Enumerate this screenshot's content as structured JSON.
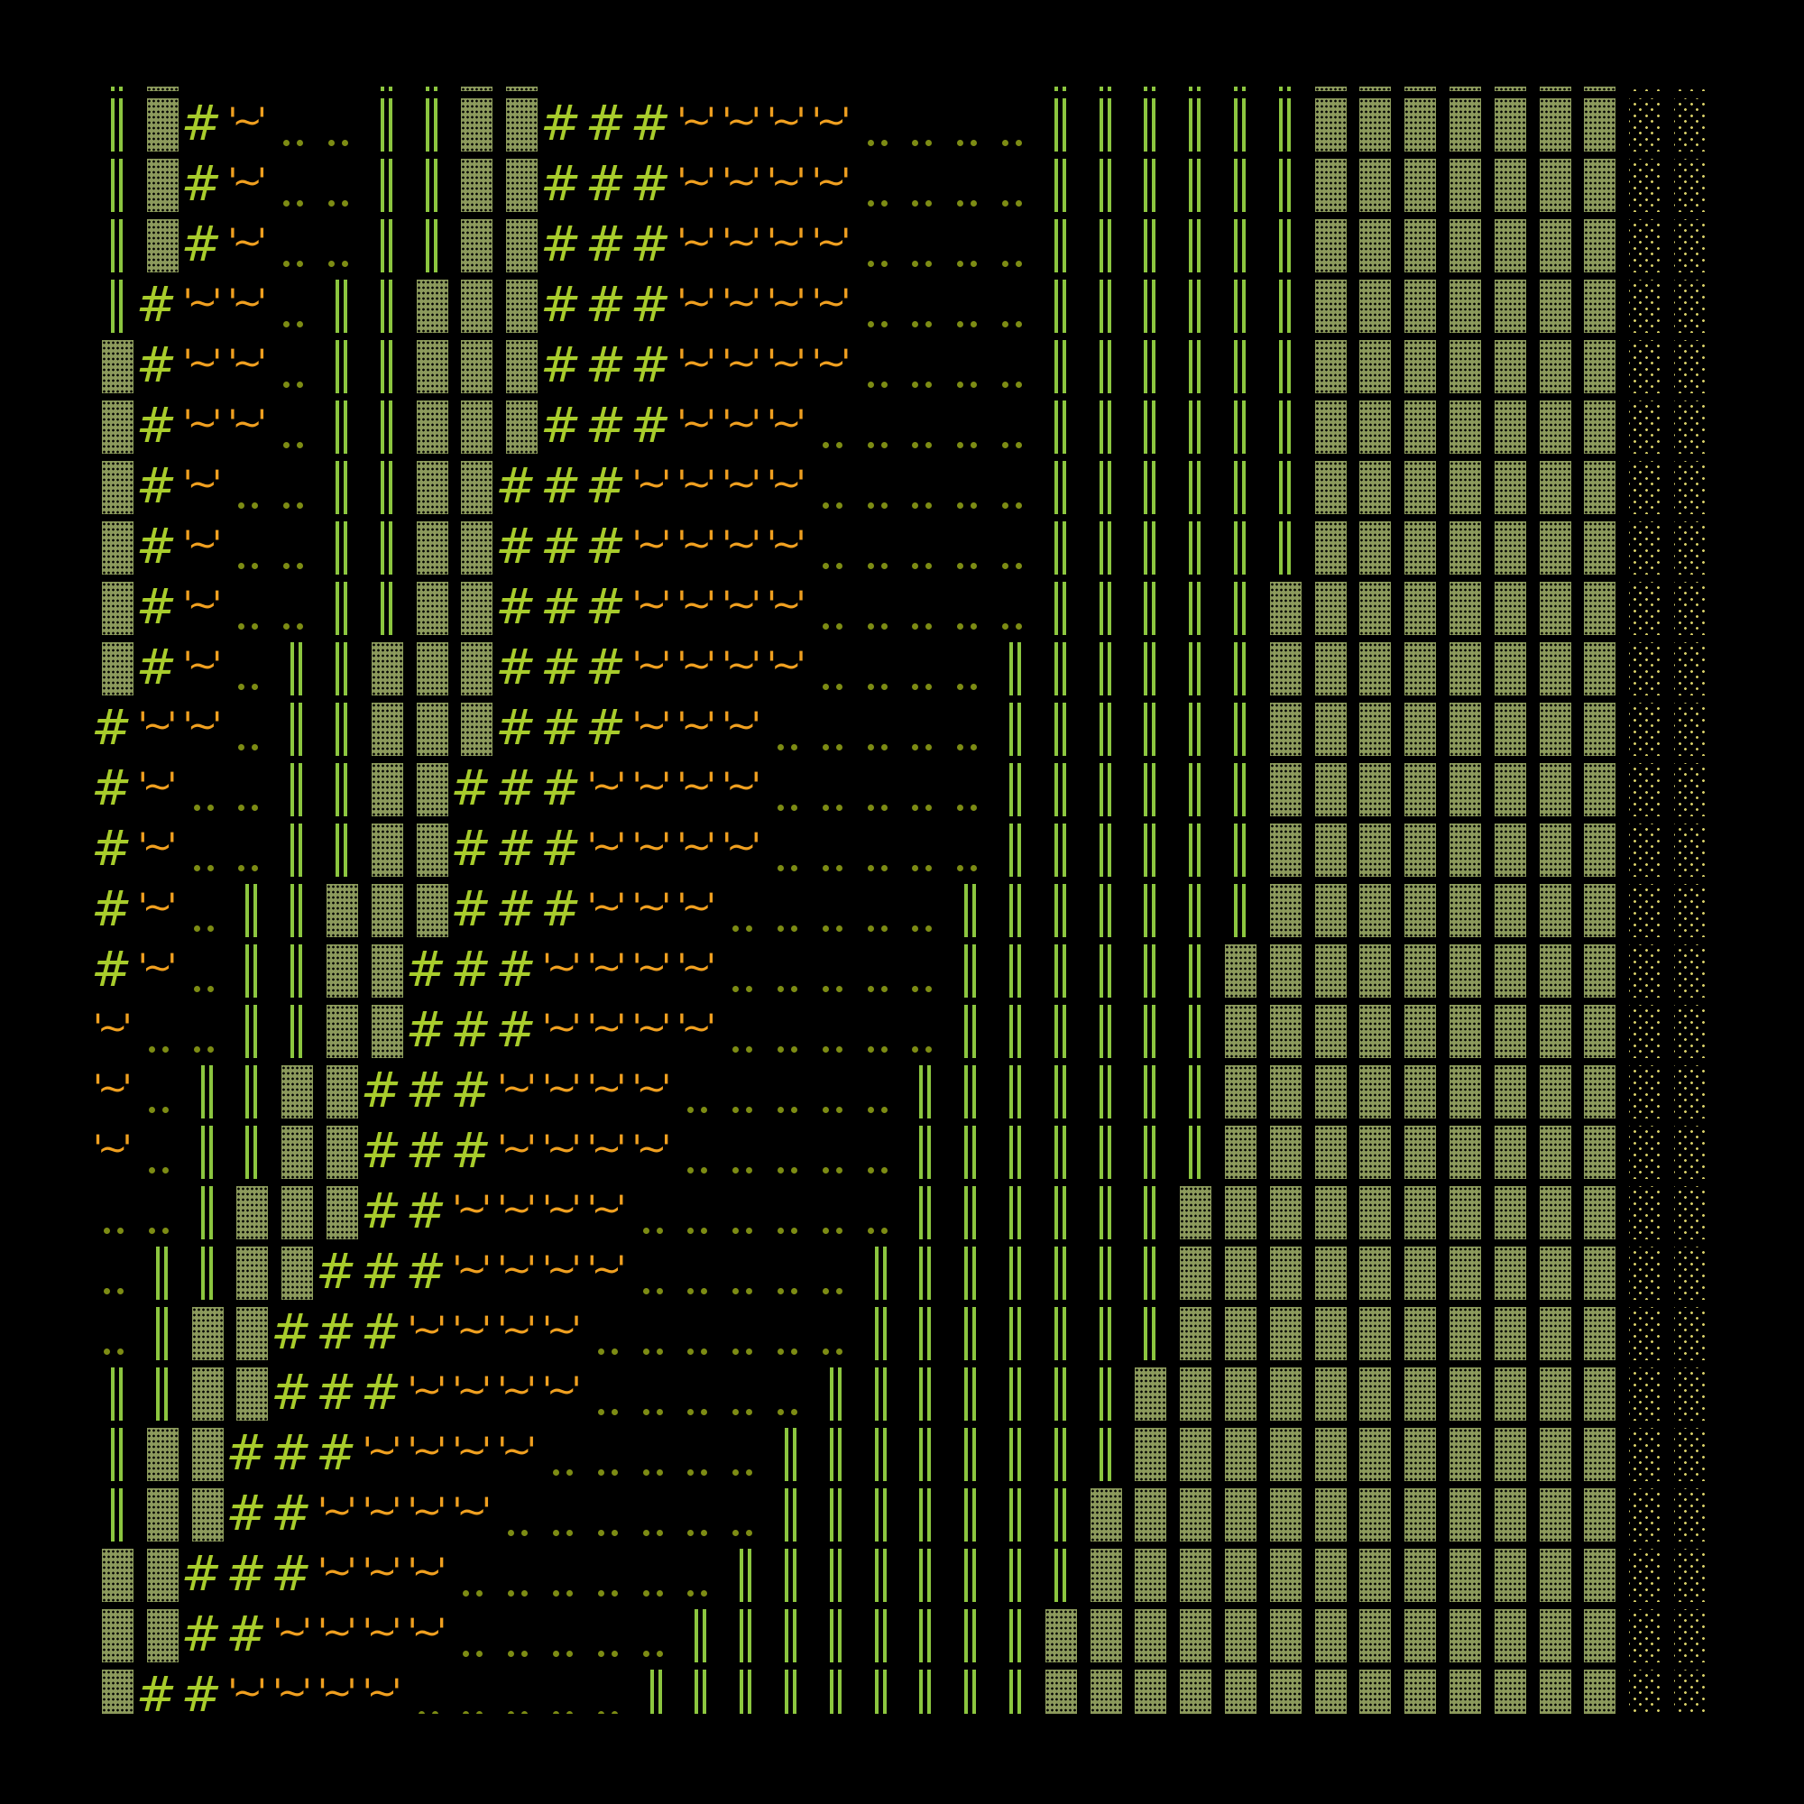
{
  "glyph_display": {
    "#": "#",
    "~": "'~'",
    "‥": "‥",
    "‖": "‖",
    "▓": "▓",
    "░": "░"
  },
  "colors": {
    "background": "#000000",
    "double_bar": "#8cc63f",
    "hash": "#a8cc2c",
    "tilde": "#f0a020",
    "dots": "#7d8c14",
    "dark_shade": "#8c9a5c",
    "light_shade": "#d8cf68"
  },
  "rows": [
    "‖▓#~‥‥‖‖▓▓###~~~~‥‥‥‥‖‖‖‖‖‖▓▓▓▓▓▓▓░░░",
    "‖▓#~‥‥‖‖▓▓###~~~~‥‥‥‥‖‖‖‖‖‖▓▓▓▓▓▓▓░░░",
    "‖▓#~‥‥‖‖▓▓###~~~~‥‥‥‥‖‖‖‖‖‖▓▓▓▓▓▓▓░░░",
    "‖▓#~‥‥‖‖▓▓###~~~~‥‥‥‥‖‖‖‖‖‖▓▓▓▓▓▓▓░░░",
    "‖#~~‥‖‖▓▓▓###~~~~‥‥‥‥‖‖‖‖‖‖▓▓▓▓▓▓▓░░░",
    "▓#~~‥‖‖▓▓▓###~~~~‥‥‥‥‖‖‖‖‖‖▓▓▓▓▓▓▓░░░",
    "▓#~~‥‖‖▓▓▓###~~~‥‥‥‥‥‖‖‖‖‖‖▓▓▓▓▓▓▓░░░",
    "▓#~‥‥‖‖▓▓###~~~~‥‥‥‥‥‖‖‖‖‖‖▓▓▓▓▓▓▓░░░",
    "▓#~‥‥‖‖▓▓###~~~~‥‥‥‥‥‖‖‖‖‖‖▓▓▓▓▓▓▓░░░",
    "▓#~‥‥‖‖▓▓###~~~~‥‥‥‥‥‖‖‖‖‖▓▓▓▓▓▓▓▓░░░",
    "▓#~‥‖‖▓▓▓###~~~~‥‥‥‥‖‖‖‖‖‖▓▓▓▓▓▓▓▓░░░",
    "#~~‥‖‖▓▓▓###~~~‥‥‥‥‥‖‖‖‖‖‖▓▓▓▓▓▓▓▓░░░",
    "#~‥‥‖‖▓▓###~~~~‥‥‥‥‥‖‖‖‖‖‖▓▓▓▓▓▓▓▓░░░",
    "#~‥‥‖‖▓▓###~~~~‥‥‥‥‥‖‖‖‖‖‖▓▓▓▓▓▓▓▓░░░",
    "#~‥‖‖▓▓▓###~~~‥‥‥‥‥‖‖‖‖‖‖‖▓▓▓▓▓▓▓▓░░░",
    "#~‥‖‖▓▓###~~~~‥‥‥‥‥‖‖‖‖‖‖▓▓▓▓▓▓▓▓▓░░░",
    "~‥‥‖‖▓▓###~~~~‥‥‥‥‥‖‖‖‖‖‖▓▓▓▓▓▓▓▓▓░░░",
    "~‥‖‖▓▓###~~~~‥‥‥‥‥‖‖‖‖‖‖‖▓▓▓▓▓▓▓▓▓░░░",
    "~‥‖‖▓▓###~~~~‥‥‥‥‥‖‖‖‖‖‖‖▓▓▓▓▓▓▓▓▓░░░",
    "‥‥‖▓▓▓##~~~~‥‥‥‥‥‥‖‖‖‖‖‖▓▓▓▓▓▓▓▓▓▓░░░",
    "‥‖‖▓▓###~~~~‥‥‥‥‥‖‖‖‖‖‖‖▓▓▓▓▓▓▓▓▓▓░░░",
    "‥‖▓▓###~~~~‥‥‥‥‥‥‖‖‖‖‖‖‖▓▓▓▓▓▓▓▓▓▓░░░",
    "‖‖▓▓###~~~~‥‥‥‥‥‖‖‖‖‖‖‖▓▓▓▓▓▓▓▓▓▓▓░░░",
    "‖▓▓###~~~~‥‥‥‥‥‖‖‖‖‖‖‖‖▓▓▓▓▓▓▓▓▓▓▓░░░",
    "‖▓▓##~~~~‥‥‥‥‥‥‖‖‖‖‖‖‖▓▓▓▓▓▓▓▓▓▓▓▓░░░",
    "▓▓###~~~‥‥‥‥‥‥‖‖‖‖‖‖‖‖▓▓▓▓▓▓▓▓▓▓▓▓░░░",
    "▓▓##~~~~‥‥‥‥‥‖‖‖‖‖‖‖‖▓▓▓▓▓▓▓▓▓▓▓▓▓░░░",
    "▓##~~~~‥‥‥‥‥‖‖‖‖‖‖‖‖‖▓▓▓▓▓▓▓▓▓▓▓▓▓░░░"
  ]
}
